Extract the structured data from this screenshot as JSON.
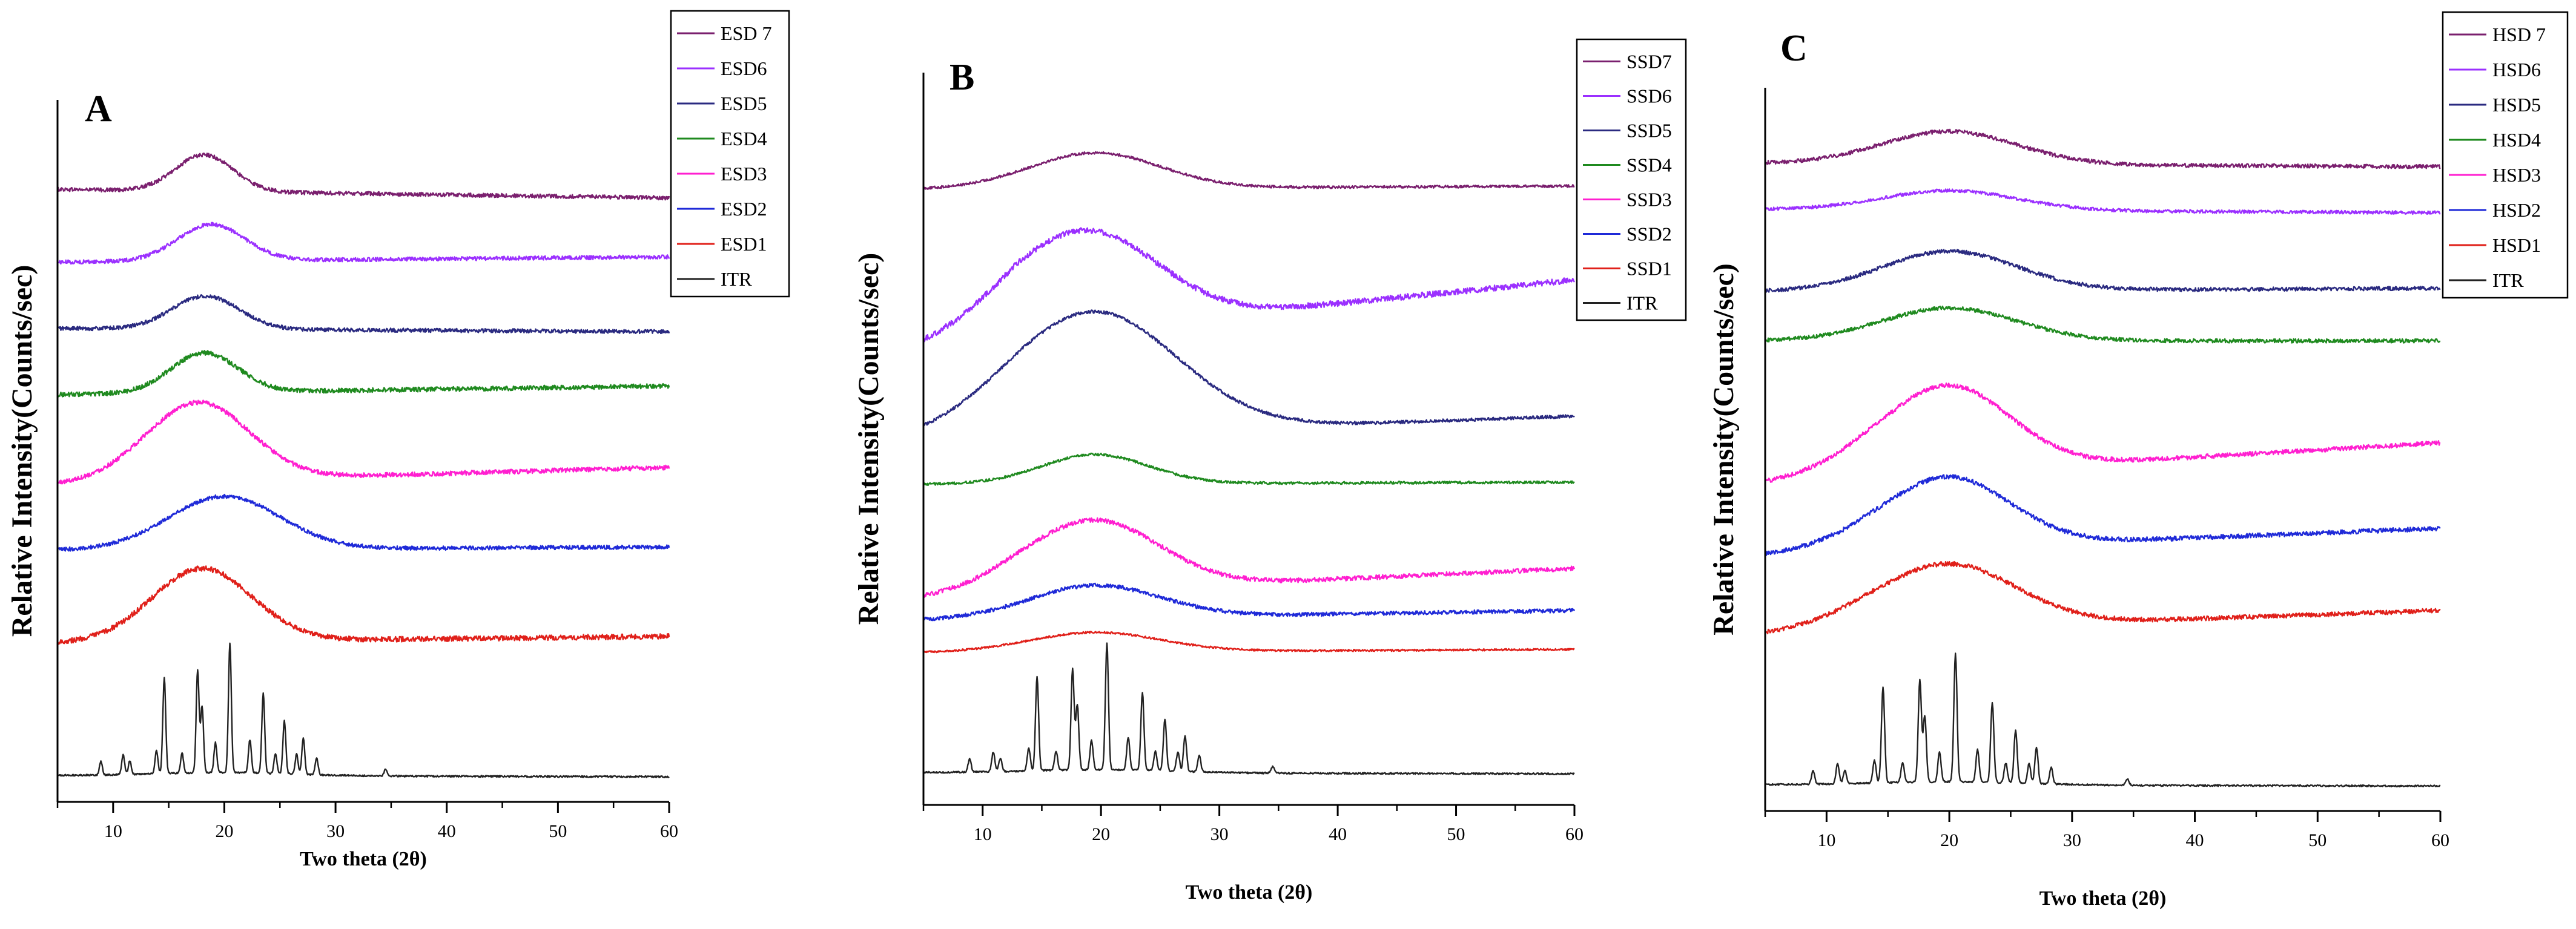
{
  "chart_data": [
    {
      "type": "line",
      "panel_label": "A",
      "title": "",
      "xlabel": "Two theta (2θ)",
      "ylabel": "Relative Intensity(Counts/sec)",
      "xlim": [
        5,
        60
      ],
      "xticks": [
        "10",
        "20",
        "30",
        "40",
        "50",
        "60"
      ],
      "yticks": [],
      "legend_position": "top-right",
      "series": [
        {
          "name": "ESD 7",
          "color": "#7a1f6e",
          "offset": 8.9,
          "halo": {
            "center": 18.2,
            "width": 2.6,
            "height": 0.55,
            "base_start": -0.05,
            "base_end": -0.18,
            "noise": 0.03
          }
        },
        {
          "name": "ESD6",
          "color": "#9b30ff",
          "offset": 7.85,
          "halo": {
            "center": 18.8,
            "width": 3.0,
            "height": 0.55,
            "base_start": -0.1,
            "base_end": -0.02,
            "noise": 0.03
          }
        },
        {
          "name": "ESD5",
          "color": "#2a2a80",
          "offset": 6.85,
          "halo": {
            "center": 18.3,
            "width": 3.0,
            "height": 0.5,
            "base_start": -0.1,
            "base_end": -0.15,
            "noise": 0.03
          }
        },
        {
          "name": "ESD4",
          "color": "#1f8a1f",
          "offset": 5.9,
          "halo": {
            "center": 18.2,
            "width": 3.0,
            "height": 0.6,
            "base_start": -0.15,
            "base_end": -0.02,
            "noise": 0.035
          }
        },
        {
          "name": "ESD3",
          "color": "#ff1fd0",
          "offset": 4.7,
          "halo": {
            "center": 17.8,
            "width": 4.5,
            "height": 1.1,
            "base_start": -0.3,
            "base_end": -0.05,
            "noise": 0.035
          }
        },
        {
          "name": "ESD2",
          "color": "#1f2ad8",
          "offset": 3.55,
          "halo": {
            "center": 20.0,
            "width": 5.0,
            "height": 0.8,
            "base_start": -0.15,
            "base_end": -0.1,
            "noise": 0.03
          }
        },
        {
          "name": "ESD1",
          "color": "#e0201a",
          "offset": 2.2,
          "halo": {
            "center": 18.0,
            "width": 4.5,
            "height": 1.1,
            "base_start": -0.2,
            "base_end": -0.1,
            "noise": 0.04
          }
        },
        {
          "name": "ITR",
          "color": "#222222",
          "offset": 0.0,
          "halo": {
            "center": 20.0,
            "width": 6.0,
            "height": 0.05,
            "base_start": 0.0,
            "base_end": -0.02,
            "noise": 0.012
          }
        }
      ],
      "crystalline_peaks": {
        "series": "ITR",
        "positions": [
          8.9,
          10.9,
          11.5,
          13.9,
          14.6,
          16.2,
          17.6,
          18.0,
          19.2,
          20.5,
          22.3,
          23.5,
          24.6,
          25.4,
          26.5,
          27.1,
          28.3,
          34.5
        ],
        "intensities": [
          0.2,
          0.3,
          0.2,
          0.35,
          1.45,
          0.3,
          1.55,
          1.0,
          0.45,
          1.95,
          0.5,
          1.2,
          0.3,
          0.8,
          0.3,
          0.55,
          0.25,
          0.1
        ]
      },
      "yrange": [
        -0.4,
        10.2
      ]
    },
    {
      "type": "line",
      "panel_label": "B",
      "title": "",
      "xlabel": "Two theta (2θ)",
      "ylabel": "Relative Intensity(Counts/sec)",
      "xlim": [
        5,
        60
      ],
      "xticks": [
        "10",
        "20",
        "30",
        "40",
        "50",
        "60"
      ],
      "yticks": [],
      "legend_position": "top-right",
      "series": [
        {
          "name": "SSD7",
          "color": "#7a1f6e",
          "offset": 9.1,
          "halo": {
            "center": 19.5,
            "width": 5.5,
            "height": 0.55,
            "base_start": -0.1,
            "base_end": -0.05,
            "noise": 0.02
          }
        },
        {
          "name": "SSD6",
          "color": "#9b30ff",
          "offset": 7.6,
          "halo": {
            "center": 19.0,
            "width": 6.0,
            "height": 1.3,
            "base_start": -1.0,
            "base_end": 0.0,
            "noise": 0.045
          }
        },
        {
          "name": "SSD5",
          "color": "#2a2a80",
          "offset": 5.5,
          "halo": {
            "center": 19.5,
            "width": 7.0,
            "height": 1.8,
            "base_start": -0.35,
            "base_end": 0.0,
            "noise": 0.025
          }
        },
        {
          "name": "SSD4",
          "color": "#1f8a1f",
          "offset": 4.5,
          "halo": {
            "center": 19.5,
            "width": 4.5,
            "height": 0.45,
            "base_start": -0.05,
            "base_end": -0.02,
            "noise": 0.02
          }
        },
        {
          "name": "SSD3",
          "color": "#ff1fd0",
          "offset": 3.1,
          "halo": {
            "center": 19.5,
            "width": 5.5,
            "height": 1.0,
            "base_start": -0.4,
            "base_end": 0.05,
            "noise": 0.035
          }
        },
        {
          "name": "SSD2",
          "color": "#1f2ad8",
          "offset": 2.5,
          "halo": {
            "center": 19.5,
            "width": 5.5,
            "height": 0.5,
            "base_start": -0.15,
            "base_end": 0.0,
            "noise": 0.03
          }
        },
        {
          "name": "SSD1",
          "color": "#e0201a",
          "offset": 1.9,
          "halo": {
            "center": 19.5,
            "width": 5.5,
            "height": 0.3,
            "base_start": -0.05,
            "base_end": 0.0,
            "noise": 0.015
          }
        },
        {
          "name": "ITR",
          "color": "#222222",
          "offset": 0.0,
          "halo": {
            "center": 20.0,
            "width": 6.0,
            "height": 0.05,
            "base_start": 0.0,
            "base_end": -0.02,
            "noise": 0.012
          }
        }
      ],
      "crystalline_peaks": {
        "series": "ITR",
        "positions": [
          8.9,
          10.9,
          11.5,
          13.9,
          14.6,
          16.2,
          17.6,
          18.0,
          19.2,
          20.5,
          22.3,
          23.5,
          24.6,
          25.4,
          26.5,
          27.1,
          28.3,
          34.5
        ],
        "intensities": [
          0.2,
          0.3,
          0.2,
          0.35,
          1.45,
          0.3,
          1.55,
          1.0,
          0.45,
          1.95,
          0.5,
          1.2,
          0.3,
          0.8,
          0.3,
          0.55,
          0.25,
          0.1
        ]
      },
      "yrange": [
        -0.5,
        10.8
      ]
    },
    {
      "type": "line",
      "panel_label": "C",
      "title": "",
      "xlabel": "Two theta (2θ)",
      "ylabel": "Relative Intensity(Counts/sec)",
      "xlim": [
        5,
        60
      ],
      "xticks": [
        "10",
        "20",
        "30",
        "40",
        "50",
        "60"
      ],
      "yticks": [],
      "legend_position": "top-right",
      "series": [
        {
          "name": "HSD 7",
          "color": "#7a1f6e",
          "offset": 9.5,
          "halo": {
            "center": 20.0,
            "width": 5.5,
            "height": 0.5,
            "base_start": -0.05,
            "base_end": -0.1,
            "noise": 0.03
          }
        },
        {
          "name": "HSD6",
          "color": "#9b30ff",
          "offset": 8.8,
          "halo": {
            "center": 20.0,
            "width": 5.5,
            "height": 0.3,
            "base_start": -0.05,
            "base_end": -0.1,
            "noise": 0.025
          }
        },
        {
          "name": "HSD5",
          "color": "#2a2a80",
          "offset": 7.6,
          "halo": {
            "center": 20.0,
            "width": 5.5,
            "height": 0.6,
            "base_start": -0.1,
            "base_end": -0.05,
            "noise": 0.03
          }
        },
        {
          "name": "HSD4",
          "color": "#1f8a1f",
          "offset": 6.8,
          "halo": {
            "center": 20.0,
            "width": 5.5,
            "height": 0.5,
            "base_start": -0.05,
            "base_end": -0.05,
            "noise": 0.03
          }
        },
        {
          "name": "HSD3",
          "color": "#ff1fd0",
          "offset": 5.2,
          "halo": {
            "center": 20.0,
            "width": 5.0,
            "height": 1.2,
            "base_start": -0.6,
            "base_end": 0.0,
            "noise": 0.035
          }
        },
        {
          "name": "HSD2",
          "color": "#1f2ad8",
          "offset": 3.9,
          "halo": {
            "center": 20.0,
            "width": 5.0,
            "height": 1.0,
            "base_start": -0.4,
            "base_end": 0.0,
            "noise": 0.035
          }
        },
        {
          "name": "HSD1",
          "color": "#e0201a",
          "offset": 2.65,
          "halo": {
            "center": 20.0,
            "width": 5.5,
            "height": 0.9,
            "base_start": -0.35,
            "base_end": 0.0,
            "noise": 0.035
          }
        },
        {
          "name": "ITR",
          "color": "#222222",
          "offset": 0.0,
          "halo": {
            "center": 20.0,
            "width": 6.0,
            "height": 0.05,
            "base_start": 0.0,
            "base_end": -0.02,
            "noise": 0.012
          }
        }
      ],
      "crystalline_peaks": {
        "series": "ITR",
        "positions": [
          8.9,
          10.9,
          11.5,
          13.9,
          14.6,
          16.2,
          17.6,
          18.0,
          19.2,
          20.5,
          22.3,
          23.5,
          24.6,
          25.4,
          26.5,
          27.1,
          28.3,
          34.5
        ],
        "intensities": [
          0.2,
          0.3,
          0.2,
          0.35,
          1.45,
          0.3,
          1.55,
          1.0,
          0.45,
          1.95,
          0.5,
          1.2,
          0.3,
          0.8,
          0.3,
          0.55,
          0.25,
          0.1
        ]
      },
      "yrange": [
        -0.4,
        10.6
      ]
    }
  ]
}
